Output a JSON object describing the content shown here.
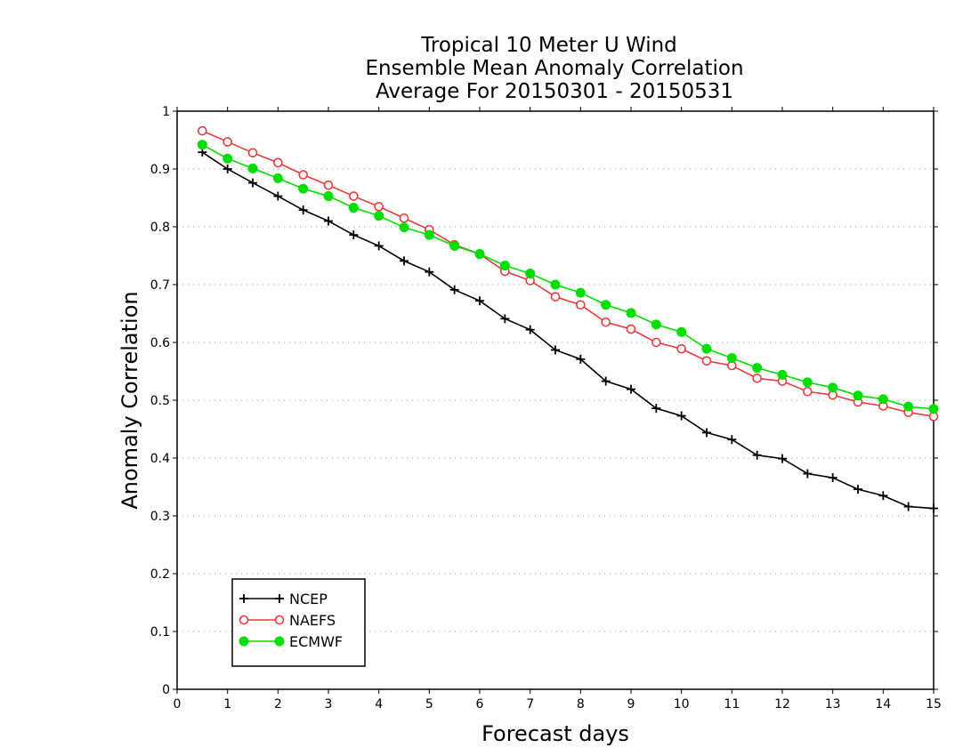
{
  "chart_data": {
    "type": "line",
    "title": [
      "Tropical 10 Meter U Wind",
      "Ensemble Mean Anomaly Correlation",
      "Average For 20150301 - 20150531"
    ],
    "xlabel": "Forecast days",
    "ylabel": "Anomaly Correlation",
    "xlim": [
      0,
      15
    ],
    "ylim": [
      0,
      1
    ],
    "xticks": [
      "0",
      "1",
      "2",
      "3",
      "4",
      "5",
      "6",
      "7",
      "8",
      "9",
      "10",
      "11",
      "12",
      "13",
      "14",
      "15"
    ],
    "yticks": [
      "0",
      "0.1",
      "0.2",
      "0.3",
      "0.4",
      "0.5",
      "0.6",
      "0.7",
      "0.8",
      "0.9",
      "1"
    ],
    "grid": "dotted horizontal",
    "legend_position": "bottom-left",
    "x": [
      0.5,
      1,
      1.5,
      2,
      2.5,
      3,
      3.5,
      4,
      4.5,
      5,
      5.5,
      6,
      6.5,
      7,
      7.5,
      8,
      8.5,
      9,
      9.5,
      10,
      10.5,
      11,
      11.5,
      12,
      12.5,
      13,
      13.5,
      14,
      14.5,
      15
    ],
    "series": [
      {
        "name": "NCEP",
        "color": "#000000",
        "marker": "plus",
        "values": [
          0.929,
          0.9,
          0.876,
          0.853,
          0.829,
          0.81,
          0.786,
          0.767,
          0.741,
          0.722,
          0.691,
          0.672,
          0.641,
          0.622,
          0.587,
          0.571,
          0.533,
          0.519,
          0.486,
          0.473,
          0.444,
          0.432,
          0.405,
          0.399,
          0.373,
          0.366,
          0.346,
          0.335,
          0.316,
          0.313
        ]
      },
      {
        "name": "NAEFS",
        "color": "#e83c3c",
        "marker": "open-circle",
        "values": [
          0.966,
          0.947,
          0.928,
          0.911,
          0.89,
          0.872,
          0.853,
          0.835,
          0.815,
          0.795,
          0.769,
          0.753,
          0.723,
          0.707,
          0.679,
          0.665,
          0.635,
          0.623,
          0.6,
          0.589,
          0.568,
          0.56,
          0.538,
          0.533,
          0.515,
          0.509,
          0.497,
          0.49,
          0.479,
          0.472
        ]
      },
      {
        "name": "ECMWF",
        "color": "#00dd00",
        "marker": "filled-circle",
        "values": [
          0.942,
          0.918,
          0.901,
          0.884,
          0.866,
          0.853,
          0.833,
          0.819,
          0.799,
          0.786,
          0.767,
          0.753,
          0.733,
          0.719,
          0.7,
          0.686,
          0.665,
          0.651,
          0.631,
          0.618,
          0.589,
          0.573,
          0.556,
          0.544,
          0.531,
          0.522,
          0.508,
          0.502,
          0.489,
          0.485
        ]
      }
    ]
  }
}
